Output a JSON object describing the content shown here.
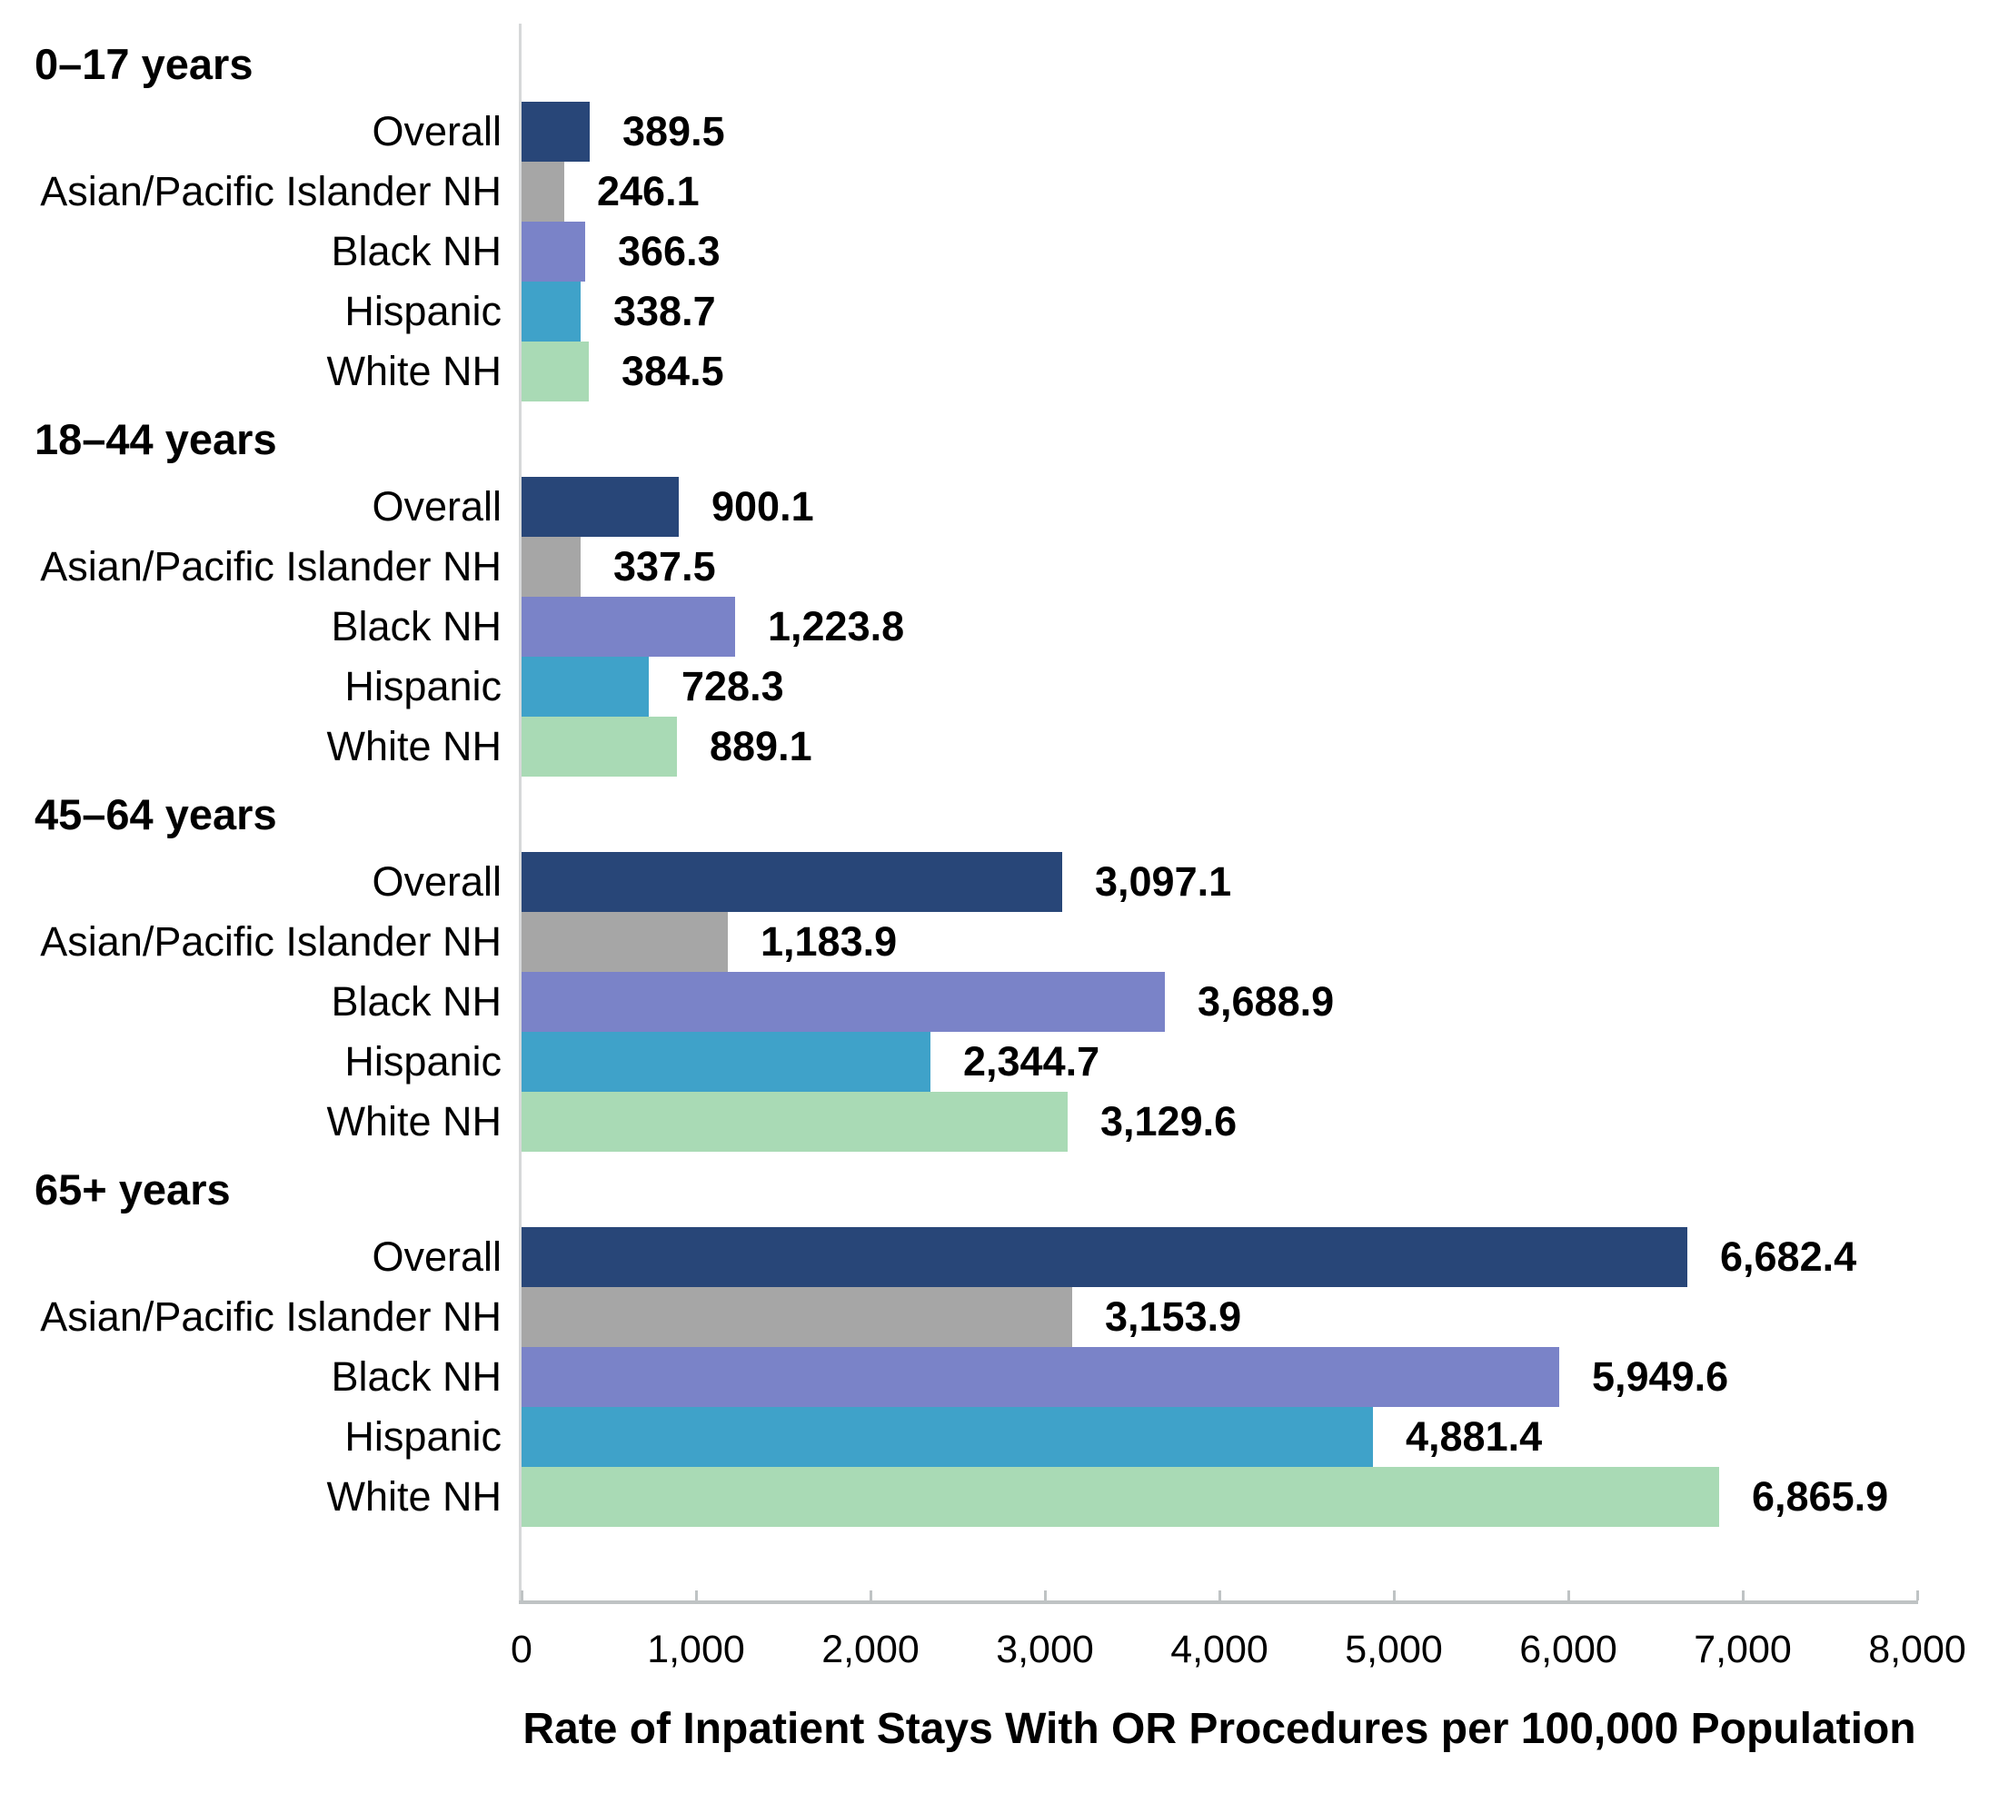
{
  "chart_data": {
    "type": "bar",
    "orientation": "horizontal",
    "xlabel": "Rate of Inpatient Stays With OR Procedures per 100,000 Population",
    "xlim": [
      0,
      8000
    ],
    "grid": false,
    "legend": "none",
    "x_tick_values": [
      0,
      1000,
      2000,
      3000,
      4000,
      5000,
      6000,
      7000,
      8000
    ],
    "x_tick_labels": [
      "0",
      "1,000",
      "2,000",
      "3,000",
      "4,000",
      "5,000",
      "6,000",
      "7,000",
      "8,000"
    ],
    "categories": [
      "Overall",
      "Asian/Pacific Islander NH",
      "Black NH",
      "Hispanic",
      "White NH"
    ],
    "series_colors": [
      "#284678",
      "#a6a6a6",
      "#7a83c8",
      "#3fa2c9",
      "#a9dab5"
    ],
    "axis_line_color": "#bfc3c4",
    "groups": [
      {
        "label": "0–17 years",
        "values": [
          389.5,
          246.1,
          366.3,
          338.7,
          384.5
        ],
        "value_labels": [
          "389.5",
          "246.1",
          "366.3",
          "338.7",
          "384.5"
        ]
      },
      {
        "label": "18–44 years",
        "values": [
          900.1,
          337.5,
          1223.8,
          728.3,
          889.1
        ],
        "value_labels": [
          "900.1",
          "337.5",
          "1,223.8",
          "728.3",
          "889.1"
        ]
      },
      {
        "label": "45–64 years",
        "values": [
          3097.1,
          1183.9,
          3688.9,
          2344.7,
          3129.6
        ],
        "value_labels": [
          "3,097.1",
          "1,183.9",
          "3,688.9",
          "2,344.7",
          "3,129.6"
        ]
      },
      {
        "label": "65+ years",
        "values": [
          6682.4,
          3153.9,
          5949.6,
          4881.4,
          6865.9
        ],
        "value_labels": [
          "6,682.4",
          "3,153.9",
          "5,949.6",
          "4,881.4",
          "6,865.9"
        ]
      }
    ]
  }
}
